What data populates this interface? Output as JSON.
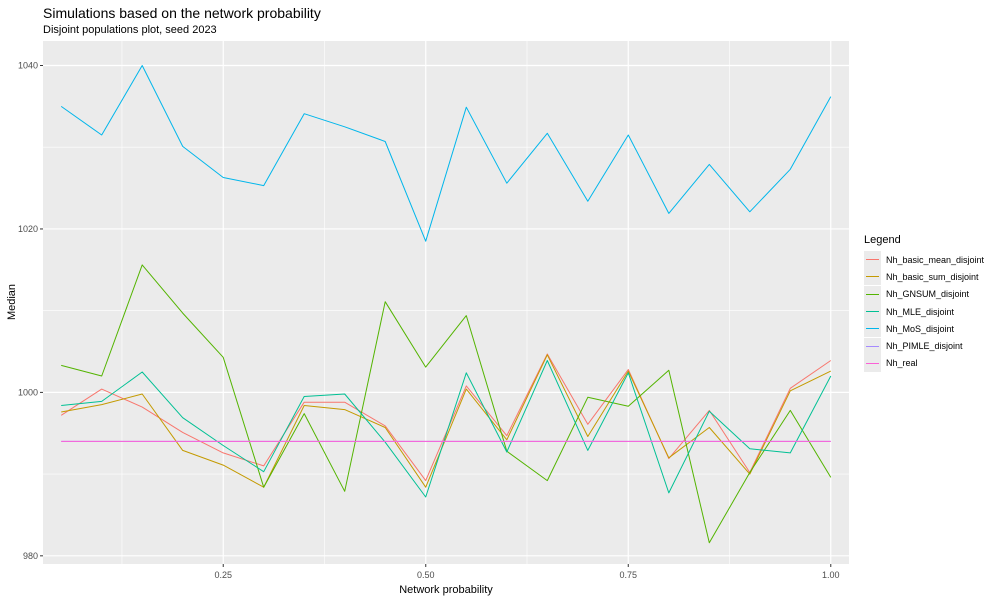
{
  "title": "Simulations based on the network probability",
  "subtitle": "Disjoint populations plot, seed 2023",
  "chart_data": {
    "type": "line",
    "xlabel": "Network probability",
    "ylabel": "Median",
    "xlim": [
      0.0275,
      1.0225
    ],
    "ylim": [
      979,
      1043
    ],
    "x_ticks": [
      0.25,
      0.5,
      0.75,
      1.0
    ],
    "x_tick_labels": [
      "0.25",
      "0.50",
      "0.75",
      "1.00"
    ],
    "y_ticks": [
      980,
      1000,
      1020,
      1040
    ],
    "y_tick_labels": [
      "980",
      "1000",
      "1020",
      "1040"
    ],
    "grid": true,
    "legend_position": "right",
    "legend_title": "Legend",
    "x": [
      0.05,
      0.1,
      0.15,
      0.2,
      0.25,
      0.3,
      0.35,
      0.4,
      0.45,
      0.5,
      0.55,
      0.6,
      0.65,
      0.7,
      0.75,
      0.8,
      0.85,
      0.9,
      0.95,
      1.0
    ],
    "series": [
      {
        "name": "Nh_basic_mean_disjoint",
        "color": "#F8766D",
        "values": [
          997.2,
          1000.4,
          998.2,
          995.1,
          992.6,
          991.0,
          998.8,
          998.8,
          995.9,
          989.2,
          1000.8,
          994.7,
          1004.7,
          996.1,
          1002.8,
          991.9,
          997.8,
          990.2,
          1000.5,
          1003.9
        ]
      },
      {
        "name": "Nh_basic_sum_disjoint",
        "color": "#C49A00",
        "values": [
          997.6,
          998.5,
          999.8,
          992.9,
          991.1,
          988.4,
          998.4,
          997.9,
          995.7,
          988.4,
          1000.4,
          994.2,
          1004.6,
          994.6,
          1002.6,
          992.0,
          995.7,
          990.0,
          1000.2,
          1002.6
        ]
      },
      {
        "name": "Nh_GNSUM_disjoint",
        "color": "#53B400",
        "values": [
          1003.3,
          1002.0,
          1015.6,
          1009.7,
          1004.3,
          988.4,
          997.4,
          987.9,
          1011.1,
          1003.1,
          1009.4,
          992.8,
          989.2,
          999.4,
          998.3,
          1002.7,
          981.6,
          990.2,
          997.8,
          989.6
        ]
      },
      {
        "name": "Nh_MLE_disjoint",
        "color": "#00C094",
        "values": [
          998.4,
          998.9,
          1002.5,
          996.9,
          993.5,
          990.3,
          999.5,
          999.8,
          993.9,
          987.2,
          1002.4,
          992.7,
          1003.9,
          992.9,
          1002.4,
          987.7,
          997.7,
          993.1,
          992.6,
          1002.0
        ]
      },
      {
        "name": "Nh_MoS_disjoint",
        "color": "#00B6EB",
        "values": [
          1035.0,
          1031.5,
          1040.0,
          1030.1,
          1026.3,
          1025.3,
          1034.1,
          1032.5,
          1030.7,
          1018.5,
          1034.9,
          1025.6,
          1031.7,
          1023.4,
          1031.5,
          1021.9,
          1027.9,
          1022.1,
          1027.3,
          1036.2
        ]
      },
      {
        "name": "Nh_PIMLE_disjoint",
        "color": "#A58AFF",
        "values": [
          994.0,
          994.0,
          994.0,
          994.0,
          994.0,
          994.0,
          994.0,
          994.0,
          994.0,
          994.0,
          994.0,
          994.0,
          994.0,
          994.0,
          994.0,
          994.0,
          994.0,
          994.0,
          994.0,
          994.0
        ]
      },
      {
        "name": "Nh_real",
        "color": "#FB61D7",
        "values": [
          994.0,
          994.0,
          994.0,
          994.0,
          994.0,
          994.0,
          994.0,
          994.0,
          994.0,
          994.0,
          994.0,
          994.0,
          994.0,
          994.0,
          994.0,
          994.0,
          994.0,
          994.0,
          994.0,
          994.0
        ]
      }
    ]
  }
}
